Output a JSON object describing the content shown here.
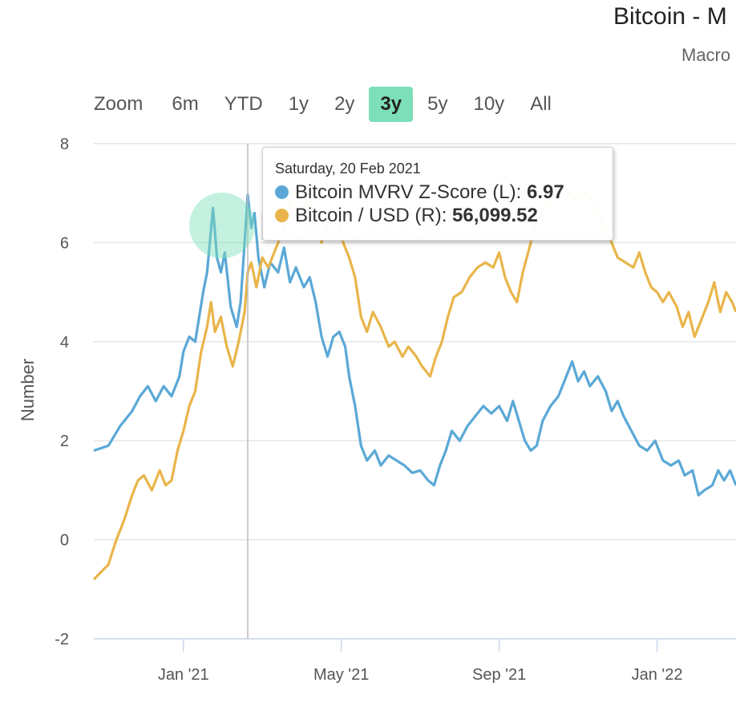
{
  "header": {
    "title": "Bitcoin - M",
    "subtitle": "Macro"
  },
  "watermark": {
    "text": "MacroMicro"
  },
  "range_selector": {
    "label": "Zoom",
    "buttons": [
      "6m",
      "YTD",
      "1y",
      "2y",
      "3y",
      "5y",
      "10y",
      "All"
    ],
    "active": "3y"
  },
  "tooltip": {
    "date": "Saturday, 20 Feb 2021",
    "rows": [
      {
        "name": "Bitcoin MVRV Z-Score (L): ",
        "value": "6.97",
        "color": "#5aa8d6"
      },
      {
        "name": "Bitcoin / USD (R): ",
        "value": "56,099.52",
        "color": "#e9b54a"
      }
    ]
  },
  "colors": {
    "mvrv": "#5aa8d6",
    "price": "#e9b54a",
    "grid": "#e6e6e6",
    "crosshair": "#cccccc"
  },
  "chart_data": {
    "type": "line",
    "title": "Bitcoin - M",
    "ylabel": "Number",
    "ylim": [
      -2,
      8
    ],
    "yticks": [
      "-2",
      "0",
      "2",
      "4",
      "6",
      "8"
    ],
    "xticks": [
      {
        "label": "Jan '21",
        "month": 2
      },
      {
        "label": "May '21",
        "month": 6
      },
      {
        "label": "Sep '21",
        "month": 10
      },
      {
        "label": "Jan '22",
        "month": 14
      }
    ],
    "x_range_months": [
      -0.27,
      16.0
    ],
    "crosshair_month": 3.63,
    "series": [
      {
        "name": "Bitcoin MVRV Z-Score (L)",
        "color": "#5aa8d6",
        "axis": "left",
        "points": [
          [
            -0.27,
            1.8
          ],
          [
            0.1,
            1.9
          ],
          [
            0.4,
            2.3
          ],
          [
            0.7,
            2.6
          ],
          [
            0.9,
            2.9
          ],
          [
            1.1,
            3.1
          ],
          [
            1.3,
            2.8
          ],
          [
            1.5,
            3.1
          ],
          [
            1.7,
            2.9
          ],
          [
            1.9,
            3.3
          ],
          [
            2.0,
            3.8
          ],
          [
            2.15,
            4.1
          ],
          [
            2.3,
            4.0
          ],
          [
            2.5,
            5.0
          ],
          [
            2.6,
            5.4
          ],
          [
            2.75,
            6.7
          ],
          [
            2.85,
            5.7
          ],
          [
            2.95,
            5.4
          ],
          [
            3.05,
            5.8
          ],
          [
            3.2,
            4.7
          ],
          [
            3.35,
            4.3
          ],
          [
            3.45,
            4.8
          ],
          [
            3.55,
            6.0
          ],
          [
            3.63,
            6.97
          ],
          [
            3.72,
            6.3
          ],
          [
            3.8,
            6.6
          ],
          [
            3.9,
            5.7
          ],
          [
            4.05,
            5.1
          ],
          [
            4.2,
            5.6
          ],
          [
            4.4,
            5.4
          ],
          [
            4.55,
            5.9
          ],
          [
            4.7,
            5.2
          ],
          [
            4.85,
            5.5
          ],
          [
            5.05,
            5.1
          ],
          [
            5.2,
            5.3
          ],
          [
            5.35,
            4.8
          ],
          [
            5.5,
            4.1
          ],
          [
            5.65,
            3.7
          ],
          [
            5.8,
            4.1
          ],
          [
            5.95,
            4.2
          ],
          [
            6.1,
            3.9
          ],
          [
            6.2,
            3.3
          ],
          [
            6.35,
            2.7
          ],
          [
            6.5,
            1.9
          ],
          [
            6.65,
            1.6
          ],
          [
            6.85,
            1.8
          ],
          [
            7.0,
            1.5
          ],
          [
            7.2,
            1.7
          ],
          [
            7.4,
            1.6
          ],
          [
            7.6,
            1.5
          ],
          [
            7.8,
            1.35
          ],
          [
            8.0,
            1.4
          ],
          [
            8.2,
            1.2
          ],
          [
            8.35,
            1.1
          ],
          [
            8.5,
            1.5
          ],
          [
            8.65,
            1.8
          ],
          [
            8.8,
            2.2
          ],
          [
            9.0,
            2.0
          ],
          [
            9.2,
            2.3
          ],
          [
            9.4,
            2.5
          ],
          [
            9.6,
            2.7
          ],
          [
            9.8,
            2.55
          ],
          [
            10.0,
            2.7
          ],
          [
            10.2,
            2.4
          ],
          [
            10.35,
            2.8
          ],
          [
            10.5,
            2.4
          ],
          [
            10.65,
            2.0
          ],
          [
            10.8,
            1.8
          ],
          [
            10.95,
            1.9
          ],
          [
            11.1,
            2.4
          ],
          [
            11.3,
            2.7
          ],
          [
            11.5,
            2.9
          ],
          [
            11.7,
            3.3
          ],
          [
            11.85,
            3.6
          ],
          [
            12.0,
            3.2
          ],
          [
            12.15,
            3.4
          ],
          [
            12.3,
            3.1
          ],
          [
            12.5,
            3.3
          ],
          [
            12.7,
            3.0
          ],
          [
            12.85,
            2.6
          ],
          [
            13.0,
            2.8
          ],
          [
            13.15,
            2.5
          ],
          [
            13.35,
            2.2
          ],
          [
            13.55,
            1.9
          ],
          [
            13.75,
            1.8
          ],
          [
            13.95,
            2.0
          ],
          [
            14.15,
            1.6
          ],
          [
            14.35,
            1.5
          ],
          [
            14.55,
            1.6
          ],
          [
            14.7,
            1.3
          ],
          [
            14.9,
            1.4
          ],
          [
            15.05,
            0.9
          ],
          [
            15.2,
            1.0
          ],
          [
            15.4,
            1.1
          ],
          [
            15.55,
            1.4
          ],
          [
            15.7,
            1.2
          ],
          [
            15.85,
            1.4
          ],
          [
            16.0,
            1.1
          ]
        ]
      },
      {
        "name": "Bitcoin / USD (R)",
        "color": "#e9b54a",
        "axis": "right",
        "points": [
          [
            -0.27,
            -0.8
          ],
          [
            0.1,
            -0.5
          ],
          [
            0.3,
            0.0
          ],
          [
            0.5,
            0.4
          ],
          [
            0.7,
            0.9
          ],
          [
            0.85,
            1.2
          ],
          [
            1.0,
            1.3
          ],
          [
            1.2,
            1.0
          ],
          [
            1.4,
            1.4
          ],
          [
            1.55,
            1.1
          ],
          [
            1.7,
            1.2
          ],
          [
            1.85,
            1.8
          ],
          [
            2.0,
            2.2
          ],
          [
            2.15,
            2.7
          ],
          [
            2.3,
            3.0
          ],
          [
            2.45,
            3.8
          ],
          [
            2.6,
            4.3
          ],
          [
            2.7,
            4.8
          ],
          [
            2.8,
            4.2
          ],
          [
            2.95,
            4.5
          ],
          [
            3.1,
            3.9
          ],
          [
            3.25,
            3.5
          ],
          [
            3.4,
            4.0
          ],
          [
            3.55,
            4.6
          ],
          [
            3.63,
            5.4
          ],
          [
            3.72,
            5.6
          ],
          [
            3.85,
            5.1
          ],
          [
            4.0,
            5.7
          ],
          [
            4.15,
            5.5
          ],
          [
            4.3,
            5.8
          ],
          [
            4.5,
            6.2
          ],
          [
            4.7,
            6.8
          ],
          [
            4.9,
            6.5
          ],
          [
            5.1,
            6.9
          ],
          [
            5.3,
            6.4
          ],
          [
            5.5,
            6.0
          ],
          [
            5.7,
            6.5
          ],
          [
            5.9,
            6.6
          ],
          [
            6.05,
            6.0
          ],
          [
            6.2,
            5.7
          ],
          [
            6.35,
            5.3
          ],
          [
            6.5,
            4.5
          ],
          [
            6.65,
            4.2
          ],
          [
            6.8,
            4.6
          ],
          [
            7.0,
            4.3
          ],
          [
            7.2,
            3.9
          ],
          [
            7.35,
            4.0
          ],
          [
            7.55,
            3.7
          ],
          [
            7.7,
            3.9
          ],
          [
            7.9,
            3.7
          ],
          [
            8.05,
            3.5
          ],
          [
            8.25,
            3.3
          ],
          [
            8.4,
            3.7
          ],
          [
            8.55,
            4.0
          ],
          [
            8.7,
            4.5
          ],
          [
            8.85,
            4.9
          ],
          [
            9.05,
            5.0
          ],
          [
            9.25,
            5.3
          ],
          [
            9.45,
            5.5
          ],
          [
            9.65,
            5.6
          ],
          [
            9.85,
            5.5
          ],
          [
            10.0,
            5.8
          ],
          [
            10.15,
            5.3
          ],
          [
            10.3,
            5.0
          ],
          [
            10.45,
            4.8
          ],
          [
            10.6,
            5.4
          ],
          [
            10.8,
            6.0
          ],
          [
            11.0,
            6.5
          ],
          [
            11.3,
            6.9
          ],
          [
            11.6,
            7.1
          ],
          [
            11.9,
            6.9
          ],
          [
            12.2,
            7.0
          ],
          [
            12.5,
            6.6
          ],
          [
            12.7,
            6.3
          ],
          [
            12.85,
            6.0
          ],
          [
            13.0,
            5.7
          ],
          [
            13.2,
            5.6
          ],
          [
            13.4,
            5.5
          ],
          [
            13.55,
            5.8
          ],
          [
            13.7,
            5.4
          ],
          [
            13.85,
            5.1
          ],
          [
            14.0,
            5.0
          ],
          [
            14.15,
            4.8
          ],
          [
            14.3,
            5.0
          ],
          [
            14.5,
            4.7
          ],
          [
            14.65,
            4.3
          ],
          [
            14.8,
            4.6
          ],
          [
            14.95,
            4.1
          ],
          [
            15.1,
            4.4
          ],
          [
            15.3,
            4.8
          ],
          [
            15.45,
            5.2
          ],
          [
            15.6,
            4.6
          ],
          [
            15.75,
            5.0
          ],
          [
            15.9,
            4.8
          ],
          [
            16.0,
            4.6
          ]
        ]
      }
    ]
  }
}
